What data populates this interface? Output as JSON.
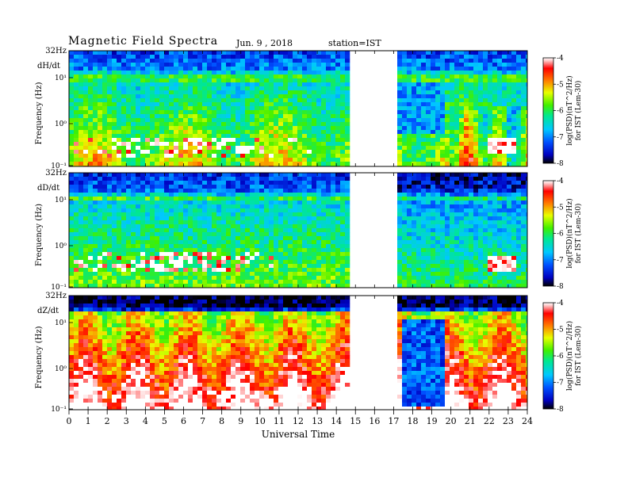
{
  "header": {
    "title": "Magnetic  Field  Spectra",
    "date": "Jun.  9  ,  2018",
    "station": "station=IST"
  },
  "chart_data": [
    {
      "type": "heatmap",
      "component": "dH/dt",
      "ylabel": "Frequency  (Hz)",
      "top_label": "32Hz",
      "yticks": [
        "10¹",
        "10⁰",
        "10⁻¹"
      ],
      "xlim": [
        0,
        24
      ],
      "data_gap": [
        14.9,
        17.1
      ],
      "colorbar": {
        "label": "log(PSD)(nT^2/Hz)",
        "sublabel": "for IST (Lem-30)",
        "ticks": [
          "-4",
          "-5",
          "-6",
          "-7",
          "-8"
        ],
        "range": [
          -8,
          -4
        ]
      }
    },
    {
      "type": "heatmap",
      "component": "dD/dt",
      "ylabel": "Frequency  (Hz)",
      "top_label": "32Hz",
      "yticks": [
        "10¹",
        "10⁰",
        "10⁻¹"
      ],
      "xlim": [
        0,
        24
      ],
      "data_gap": [
        14.9,
        17.1
      ],
      "colorbar": {
        "label": "log(PSD)(nT^2/Hz)",
        "sublabel": "for IST (Lem-30)",
        "ticks": [
          "-4",
          "-5",
          "-6",
          "-7",
          "-8"
        ],
        "range": [
          -8,
          -4
        ]
      }
    },
    {
      "type": "heatmap",
      "component": "dZ/dt",
      "ylabel": "Frequency  (Hz)",
      "top_label": "32Hz",
      "yticks": [
        "10¹",
        "10⁰",
        "10⁻¹"
      ],
      "xlim": [
        0,
        24
      ],
      "data_gap": [
        14.9,
        17.1
      ],
      "colorbar": {
        "label": "log(PSD)(nT^2/Hz)",
        "sublabel": "for IST (Lem-30)",
        "ticks": [
          "-4",
          "-5",
          "-6",
          "-7",
          "-8"
        ],
        "range": [
          -8,
          -4
        ]
      }
    }
  ],
  "x_axis": {
    "label": "Universal  Time",
    "ticks": [
      "0",
      "1",
      "2",
      "3",
      "4",
      "5",
      "6",
      "7",
      "8",
      "9",
      "10",
      "11",
      "12",
      "13",
      "14",
      "15",
      "16",
      "17",
      "18",
      "19",
      "20",
      "21",
      "22",
      "23",
      "24"
    ]
  }
}
